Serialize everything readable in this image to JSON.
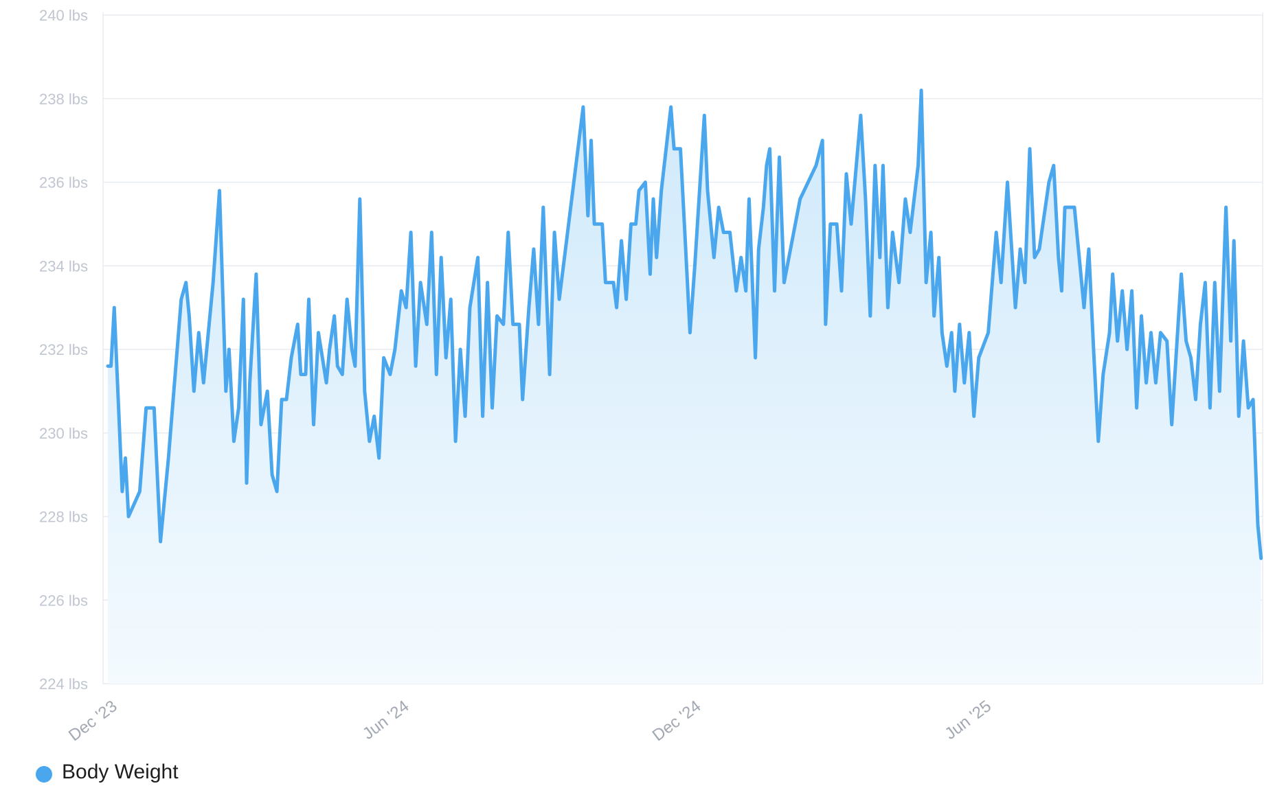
{
  "chart_data": {
    "type": "area",
    "title": "",
    "xlabel": "",
    "ylabel": "",
    "y_ticks": [
      "224 lbs",
      "226 lbs",
      "228 lbs",
      "230 lbs",
      "232 lbs",
      "234 lbs",
      "236 lbs",
      "238 lbs",
      "240 lbs"
    ],
    "ylim": [
      224,
      240
    ],
    "x_ticks": [
      {
        "label": "Dec '23",
        "date": "2023-12-01"
      },
      {
        "label": "Jun '24",
        "date": "2024-06-01"
      },
      {
        "label": "Dec '24",
        "date": "2024-12-01"
      },
      {
        "label": "Jun '25",
        "date": "2025-06-01"
      }
    ],
    "xlim": [
      "2023-12-01",
      "2025-11-27"
    ],
    "grid": true,
    "legend_position": "bottom-left",
    "colors": {
      "line": "#4aa7ee",
      "fill_top": "#cfe9fb",
      "fill_bottom": "#f4fafe",
      "grid": "#e8ebef"
    },
    "series": [
      {
        "name": "Body Weight",
        "points": [
          [
            "2023-12-04",
            231.6
          ],
          [
            "2023-12-06",
            231.6
          ],
          [
            "2023-12-08",
            233.0
          ],
          [
            "2023-12-13",
            228.6
          ],
          [
            "2023-12-15",
            229.4
          ],
          [
            "2023-12-17",
            228.0
          ],
          [
            "2023-12-24",
            228.6
          ],
          [
            "2023-12-28",
            230.6
          ],
          [
            "2024-01-02",
            230.6
          ],
          [
            "2024-01-06",
            227.4
          ],
          [
            "2024-01-11",
            229.4
          ],
          [
            "2024-01-19",
            233.2
          ],
          [
            "2024-01-22",
            233.6
          ],
          [
            "2024-01-24",
            232.8
          ],
          [
            "2024-01-27",
            231.0
          ],
          [
            "2024-01-30",
            232.4
          ],
          [
            "2024-02-02",
            231.2
          ],
          [
            "2024-02-08",
            233.6
          ],
          [
            "2024-02-12",
            235.8
          ],
          [
            "2024-02-16",
            231.0
          ],
          [
            "2024-02-18",
            232.0
          ],
          [
            "2024-02-21",
            229.8
          ],
          [
            "2024-02-24",
            230.6
          ],
          [
            "2024-02-27",
            233.2
          ],
          [
            "2024-02-29",
            228.8
          ],
          [
            "2024-03-02",
            231.2
          ],
          [
            "2024-03-06",
            233.8
          ],
          [
            "2024-03-09",
            230.2
          ],
          [
            "2024-03-13",
            231.0
          ],
          [
            "2024-03-16",
            229.0
          ],
          [
            "2024-03-19",
            228.6
          ],
          [
            "2024-03-22",
            230.8
          ],
          [
            "2024-03-25",
            230.8
          ],
          [
            "2024-03-28",
            231.8
          ],
          [
            "2024-04-01",
            232.6
          ],
          [
            "2024-04-03",
            231.4
          ],
          [
            "2024-04-06",
            231.4
          ],
          [
            "2024-04-08",
            233.2
          ],
          [
            "2024-04-11",
            230.2
          ],
          [
            "2024-04-14",
            232.4
          ],
          [
            "2024-04-19",
            231.2
          ],
          [
            "2024-04-21",
            232.0
          ],
          [
            "2024-04-24",
            232.8
          ],
          [
            "2024-04-26",
            231.6
          ],
          [
            "2024-04-29",
            231.4
          ],
          [
            "2024-05-02",
            233.2
          ],
          [
            "2024-05-05",
            232.0
          ],
          [
            "2024-05-07",
            231.6
          ],
          [
            "2024-05-10",
            235.6
          ],
          [
            "2024-05-13",
            231.0
          ],
          [
            "2024-05-16",
            229.8
          ],
          [
            "2024-05-19",
            230.4
          ],
          [
            "2024-05-22",
            229.4
          ],
          [
            "2024-05-25",
            231.8
          ],
          [
            "2024-05-29",
            231.4
          ],
          [
            "2024-06-01",
            232.0
          ],
          [
            "2024-06-05",
            233.4
          ],
          [
            "2024-06-08",
            233.0
          ],
          [
            "2024-06-11",
            234.8
          ],
          [
            "2024-06-14",
            231.6
          ],
          [
            "2024-06-17",
            233.6
          ],
          [
            "2024-06-21",
            232.6
          ],
          [
            "2024-06-24",
            234.8
          ],
          [
            "2024-06-27",
            231.4
          ],
          [
            "2024-06-30",
            234.2
          ],
          [
            "2024-07-03",
            231.8
          ],
          [
            "2024-07-06",
            233.2
          ],
          [
            "2024-07-09",
            229.8
          ],
          [
            "2024-07-12",
            232.0
          ],
          [
            "2024-07-15",
            230.4
          ],
          [
            "2024-07-18",
            233.0
          ],
          [
            "2024-07-23",
            234.2
          ],
          [
            "2024-07-26",
            230.4
          ],
          [
            "2024-07-29",
            233.6
          ],
          [
            "2024-08-01",
            230.6
          ],
          [
            "2024-08-04",
            232.8
          ],
          [
            "2024-08-08",
            232.6
          ],
          [
            "2024-08-11",
            234.8
          ],
          [
            "2024-08-14",
            232.6
          ],
          [
            "2024-08-18",
            232.6
          ],
          [
            "2024-08-20",
            230.8
          ],
          [
            "2024-08-24",
            233.0
          ],
          [
            "2024-08-27",
            234.4
          ],
          [
            "2024-08-30",
            232.6
          ],
          [
            "2024-09-02",
            235.4
          ],
          [
            "2024-09-06",
            231.4
          ],
          [
            "2024-09-09",
            234.8
          ],
          [
            "2024-09-12",
            233.2
          ],
          [
            "2024-09-27",
            237.8
          ],
          [
            "2024-09-30",
            235.2
          ],
          [
            "2024-10-02",
            237.0
          ],
          [
            "2024-10-04",
            235.0
          ],
          [
            "2024-10-09",
            235.0
          ],
          [
            "2024-10-11",
            233.6
          ],
          [
            "2024-10-16",
            233.6
          ],
          [
            "2024-10-18",
            233.0
          ],
          [
            "2024-10-21",
            234.6
          ],
          [
            "2024-10-24",
            233.2
          ],
          [
            "2024-10-27",
            235.0
          ],
          [
            "2024-10-30",
            235.0
          ],
          [
            "2024-11-01",
            235.8
          ],
          [
            "2024-11-05",
            236.0
          ],
          [
            "2024-11-08",
            233.8
          ],
          [
            "2024-11-10",
            235.6
          ],
          [
            "2024-11-12",
            234.2
          ],
          [
            "2024-11-15",
            235.8
          ],
          [
            "2024-11-21",
            237.8
          ],
          [
            "2024-11-23",
            236.8
          ],
          [
            "2024-11-27",
            236.8
          ],
          [
            "2024-11-30",
            234.6
          ],
          [
            "2024-12-03",
            232.4
          ],
          [
            "2024-12-06",
            234.0
          ],
          [
            "2024-12-12",
            237.6
          ],
          [
            "2024-12-14",
            235.8
          ],
          [
            "2024-12-18",
            234.2
          ],
          [
            "2024-12-21",
            235.4
          ],
          [
            "2024-12-24",
            234.8
          ],
          [
            "2024-12-28",
            234.8
          ],
          [
            "2025-01-01",
            233.4
          ],
          [
            "2025-01-04",
            234.2
          ],
          [
            "2025-01-07",
            233.4
          ],
          [
            "2025-01-09",
            235.6
          ],
          [
            "2025-01-13",
            231.8
          ],
          [
            "2025-01-15",
            234.4
          ],
          [
            "2025-01-18",
            235.4
          ],
          [
            "2025-01-20",
            236.4
          ],
          [
            "2025-01-22",
            236.8
          ],
          [
            "2025-01-25",
            233.4
          ],
          [
            "2025-01-28",
            236.6
          ],
          [
            "2025-01-31",
            233.6
          ],
          [
            "2025-02-10",
            235.6
          ],
          [
            "2025-02-20",
            236.4
          ],
          [
            "2025-02-24",
            237.0
          ],
          [
            "2025-02-26",
            232.6
          ],
          [
            "2025-03-01",
            235.0
          ],
          [
            "2025-03-05",
            235.0
          ],
          [
            "2025-03-08",
            233.4
          ],
          [
            "2025-03-11",
            236.2
          ],
          [
            "2025-03-14",
            235.0
          ],
          [
            "2025-03-20",
            237.6
          ],
          [
            "2025-03-23",
            235.6
          ],
          [
            "2025-03-26",
            232.8
          ],
          [
            "2025-03-29",
            236.4
          ],
          [
            "2025-04-01",
            234.2
          ],
          [
            "2025-04-03",
            236.4
          ],
          [
            "2025-04-06",
            233.0
          ],
          [
            "2025-04-09",
            234.8
          ],
          [
            "2025-04-13",
            233.6
          ],
          [
            "2025-04-17",
            235.6
          ],
          [
            "2025-04-20",
            234.8
          ],
          [
            "2025-04-25",
            236.4
          ],
          [
            "2025-04-27",
            238.2
          ],
          [
            "2025-04-30",
            233.6
          ],
          [
            "2025-05-03",
            234.8
          ],
          [
            "2025-05-05",
            232.8
          ],
          [
            "2025-05-08",
            234.2
          ],
          [
            "2025-05-10",
            232.4
          ],
          [
            "2025-05-13",
            231.6
          ],
          [
            "2025-05-16",
            232.4
          ],
          [
            "2025-05-18",
            231.0
          ],
          [
            "2025-05-21",
            232.6
          ],
          [
            "2025-05-24",
            231.2
          ],
          [
            "2025-05-27",
            232.4
          ],
          [
            "2025-05-30",
            230.4
          ],
          [
            "2025-06-02",
            231.8
          ],
          [
            "2025-06-08",
            232.4
          ],
          [
            "2025-06-13",
            234.8
          ],
          [
            "2025-06-16",
            233.6
          ],
          [
            "2025-06-20",
            236.0
          ],
          [
            "2025-06-25",
            233.0
          ],
          [
            "2025-06-28",
            234.4
          ],
          [
            "2025-07-01",
            233.6
          ],
          [
            "2025-07-04",
            236.8
          ],
          [
            "2025-07-07",
            234.2
          ],
          [
            "2025-07-10",
            234.4
          ],
          [
            "2025-07-16",
            236.0
          ],
          [
            "2025-07-19",
            236.4
          ],
          [
            "2025-07-22",
            234.2
          ],
          [
            "2025-07-24",
            233.4
          ],
          [
            "2025-07-26",
            235.4
          ],
          [
            "2025-08-01",
            235.4
          ],
          [
            "2025-08-04",
            234.2
          ],
          [
            "2025-08-07",
            233.0
          ],
          [
            "2025-08-10",
            234.4
          ],
          [
            "2025-08-13",
            232.0
          ],
          [
            "2025-08-16",
            229.8
          ],
          [
            "2025-08-19",
            231.4
          ],
          [
            "2025-08-23",
            232.4
          ],
          [
            "2025-08-25",
            233.8
          ],
          [
            "2025-08-28",
            232.2
          ],
          [
            "2025-08-31",
            233.4
          ],
          [
            "2025-09-03",
            232.0
          ],
          [
            "2025-09-06",
            233.4
          ],
          [
            "2025-09-09",
            230.6
          ],
          [
            "2025-09-12",
            232.8
          ],
          [
            "2025-09-15",
            231.2
          ],
          [
            "2025-09-18",
            232.4
          ],
          [
            "2025-09-21",
            231.2
          ],
          [
            "2025-09-24",
            232.4
          ],
          [
            "2025-09-28",
            232.2
          ],
          [
            "2025-10-01",
            230.2
          ],
          [
            "2025-10-04",
            232.0
          ],
          [
            "2025-10-07",
            233.8
          ],
          [
            "2025-10-10",
            232.2
          ],
          [
            "2025-10-13",
            231.8
          ],
          [
            "2025-10-16",
            230.8
          ],
          [
            "2025-10-19",
            232.6
          ],
          [
            "2025-10-22",
            233.6
          ],
          [
            "2025-10-25",
            230.6
          ],
          [
            "2025-10-28",
            233.6
          ],
          [
            "2025-10-31",
            231.0
          ],
          [
            "2025-11-04",
            235.4
          ],
          [
            "2025-11-07",
            232.2
          ],
          [
            "2025-11-09",
            234.6
          ],
          [
            "2025-11-12",
            230.4
          ],
          [
            "2025-11-15",
            232.2
          ],
          [
            "2025-11-18",
            230.6
          ],
          [
            "2025-11-21",
            230.8
          ],
          [
            "2025-11-24",
            227.8
          ],
          [
            "2025-11-26",
            227.0
          ]
        ]
      }
    ]
  }
}
